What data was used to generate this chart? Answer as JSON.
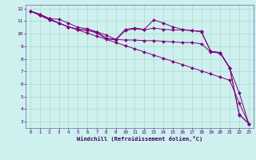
{
  "xlabel": "Windchill (Refroidissement éolien,°C)",
  "bg_color": "#cef0ee",
  "line_color": "#800080",
  "grid_color": "#aaddcc",
  "spine_color": "#6666aa",
  "tick_color": "#400060",
  "xlim": [
    -0.5,
    23.5
  ],
  "ylim": [
    2.5,
    12.3
  ],
  "xticks": [
    0,
    1,
    2,
    3,
    4,
    5,
    6,
    7,
    8,
    9,
    10,
    11,
    12,
    13,
    14,
    15,
    16,
    17,
    18,
    19,
    20,
    21,
    22,
    23
  ],
  "yticks": [
    3,
    4,
    5,
    6,
    7,
    8,
    9,
    10,
    11,
    12
  ],
  "lines": [
    {
      "x": [
        0,
        1,
        2,
        3,
        4,
        5,
        6,
        7,
        8,
        9,
        10,
        11,
        12,
        13,
        14,
        15,
        16,
        17,
        18,
        19,
        20,
        21,
        22,
        23
      ],
      "y": [
        11.8,
        11.55,
        11.2,
        11.15,
        10.85,
        10.5,
        10.4,
        10.15,
        9.9,
        9.55,
        9.5,
        9.5,
        9.45,
        9.45,
        9.4,
        9.35,
        9.3,
        9.3,
        9.2,
        8.55,
        8.45,
        7.25,
        5.3,
        2.85
      ]
    },
    {
      "x": [
        0,
        1,
        2,
        3,
        4,
        5,
        6,
        7,
        8,
        9,
        10,
        11,
        12,
        13,
        14,
        15,
        16,
        17,
        18,
        19,
        20,
        21,
        22,
        23
      ],
      "y": [
        11.8,
        11.5,
        11.15,
        10.85,
        10.55,
        10.35,
        10.25,
        10.15,
        9.65,
        9.55,
        10.35,
        10.45,
        10.35,
        11.1,
        10.85,
        10.55,
        10.35,
        10.25,
        10.15,
        8.6,
        8.5,
        7.3,
        3.6,
        2.85
      ]
    },
    {
      "x": [
        0,
        1,
        2,
        3,
        4,
        5,
        6,
        7,
        8,
        9,
        10,
        11,
        12,
        13,
        14,
        15,
        16,
        17,
        18,
        19,
        20,
        21,
        22,
        23
      ],
      "y": [
        11.8,
        11.45,
        11.1,
        10.85,
        10.55,
        10.35,
        10.3,
        10.05,
        9.6,
        9.5,
        10.25,
        10.4,
        10.3,
        10.45,
        10.35,
        10.3,
        10.3,
        10.25,
        10.2,
        8.6,
        8.5,
        7.3,
        3.55,
        2.85
      ]
    },
    {
      "x": [
        0,
        1,
        2,
        3,
        4,
        5,
        6,
        7,
        8,
        9,
        10,
        11,
        12,
        13,
        14,
        15,
        16,
        17,
        18,
        19,
        20,
        21,
        22,
        23
      ],
      "y": [
        11.8,
        11.55,
        11.2,
        10.85,
        10.55,
        10.3,
        10.05,
        9.8,
        9.55,
        9.3,
        9.05,
        8.8,
        8.55,
        8.3,
        8.05,
        7.8,
        7.55,
        7.3,
        7.05,
        6.8,
        6.55,
        6.3,
        4.5,
        2.85
      ]
    }
  ]
}
